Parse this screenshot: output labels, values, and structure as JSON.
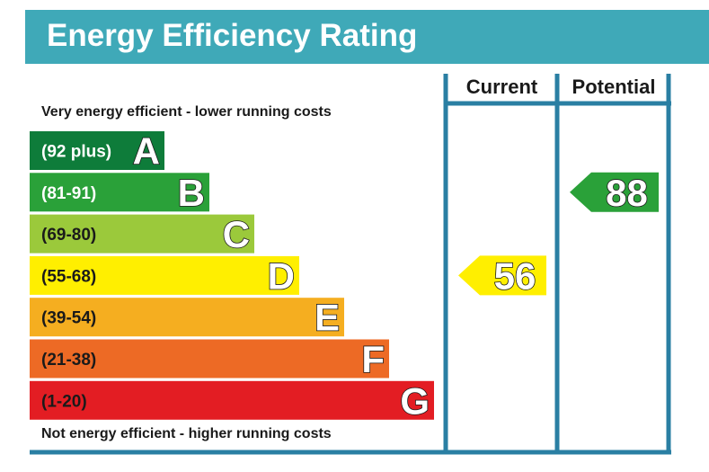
{
  "title": "Energy Efficiency Rating",
  "notes": {
    "top": "Very energy efficient - lower running costs",
    "bottom": "Not energy efficient - higher running costs"
  },
  "columns": {
    "current": "Current",
    "potential": "Potential"
  },
  "colors": {
    "frame": "#2a7fa3",
    "title_bg": "#3fa9b8"
  },
  "chart_data": {
    "type": "bar",
    "title": "Energy Efficiency Rating",
    "bands": [
      {
        "letter": "A",
        "range": "(92 plus)",
        "min": 92,
        "max": 100,
        "color": "#0e7c3a"
      },
      {
        "letter": "B",
        "range": "(81-91)",
        "min": 81,
        "max": 91,
        "color": "#2aa139"
      },
      {
        "letter": "C",
        "range": "(69-80)",
        "min": 69,
        "max": 80,
        "color": "#9bc93b"
      },
      {
        "letter": "D",
        "range": "(55-68)",
        "min": 55,
        "max": 68,
        "color": "#ffef00"
      },
      {
        "letter": "E",
        "range": "(39-54)",
        "min": 39,
        "max": 54,
        "color": "#f5ae20"
      },
      {
        "letter": "F",
        "range": "(21-38)",
        "min": 21,
        "max": 38,
        "color": "#ed6a25"
      },
      {
        "letter": "G",
        "range": "(1-20)",
        "min": 1,
        "max": 20,
        "color": "#e31d23"
      }
    ],
    "series": [
      {
        "name": "Current",
        "value": 56,
        "band": "D",
        "color": "#ffef00"
      },
      {
        "name": "Potential",
        "value": 88,
        "band": "B",
        "color": "#2aa139"
      }
    ]
  }
}
